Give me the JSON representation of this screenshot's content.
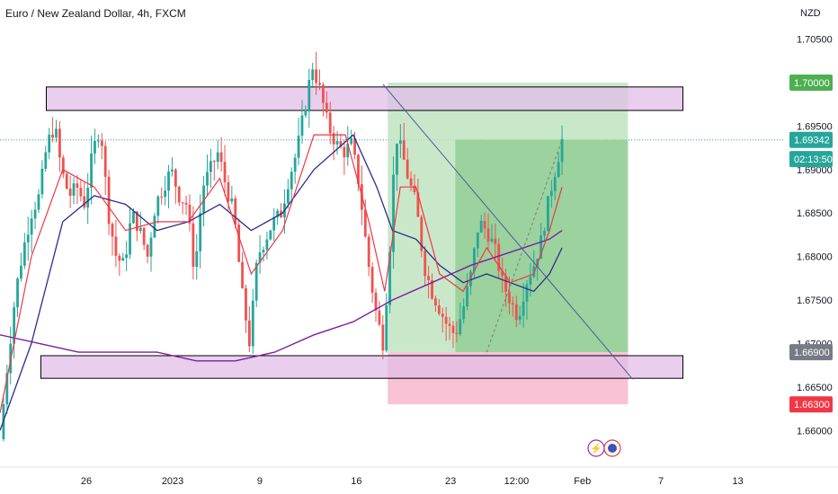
{
  "header": {
    "title": "Euro / New Zealand Dollar, 4h, FXCM",
    "currency": "NZD"
  },
  "colors": {
    "up": "#26a69a",
    "down": "#ef5350",
    "ma_fast": "#f23645",
    "ma_mid": "#2a2e8c",
    "ma_slow": "#7b1fa2",
    "zone": "#e1bee7",
    "profit": "#81c784",
    "loss": "#f48fb1"
  },
  "chart_data": {
    "type": "candlestick",
    "symbol": "EURNZD",
    "timeframe": "4h",
    "ylim": [
      1.656,
      1.7095
    ],
    "y_ticks": [
      "1.70500",
      "1.69500",
      "1.69000",
      "1.68500",
      "1.68000",
      "1.67500",
      "1.67000",
      "1.66500",
      "1.66000"
    ],
    "x_ticks": [
      "26",
      "2023",
      "9",
      "16",
      "23",
      "12:00",
      "Feb",
      "7",
      "13"
    ],
    "price_tags": [
      {
        "label": "1.70000",
        "value": 1.7,
        "color": "#4caf50"
      },
      {
        "label": "1.69342",
        "value": 1.69342,
        "color": "#26a69a"
      },
      {
        "label": "02:13:50",
        "value": 1.6912,
        "color": "#26a69a"
      },
      {
        "label": "1.66900",
        "value": 1.669,
        "color": "#787b86"
      },
      {
        "label": "1.66300",
        "value": 1.663,
        "color": "#f23645"
      }
    ],
    "current_price": 1.69342,
    "countdown": "02:13:50",
    "zones": [
      {
        "name": "resistance",
        "from": 1.6968,
        "to": 1.6995
      },
      {
        "name": "support",
        "from": 1.666,
        "to": 1.6686
      }
    ],
    "position": {
      "entry": 1.669,
      "target": 1.7,
      "stop": 1.663
    },
    "trendline": {
      "from": [
        0.488,
        1.6998
      ],
      "to": [
        0.806,
        1.6659
      ]
    },
    "close_path": [
      [
        0.0,
        1.659
      ],
      [
        0.01,
        1.668
      ],
      [
        0.02,
        1.676
      ],
      [
        0.03,
        1.681
      ],
      [
        0.04,
        1.685
      ],
      [
        0.05,
        1.687
      ],
      [
        0.06,
        1.693
      ],
      [
        0.07,
        1.695
      ],
      [
        0.078,
        1.69
      ],
      [
        0.088,
        1.687
      ],
      [
        0.098,
        1.688
      ],
      [
        0.108,
        1.686
      ],
      [
        0.118,
        1.692
      ],
      [
        0.128,
        1.695
      ],
      [
        0.138,
        1.685
      ],
      [
        0.148,
        1.68
      ],
      [
        0.158,
        1.679
      ],
      [
        0.168,
        1.685
      ],
      [
        0.178,
        1.683
      ],
      [
        0.188,
        1.68
      ],
      [
        0.198,
        1.686
      ],
      [
        0.208,
        1.688
      ],
      [
        0.218,
        1.69
      ],
      [
        0.228,
        1.687
      ],
      [
        0.238,
        1.686
      ],
      [
        0.248,
        1.678
      ],
      [
        0.258,
        1.688
      ],
      [
        0.268,
        1.69
      ],
      [
        0.278,
        1.692
      ],
      [
        0.288,
        1.688
      ],
      [
        0.298,
        1.685
      ],
      [
        0.308,
        1.676
      ],
      [
        0.318,
        1.67
      ],
      [
        0.328,
        1.68
      ],
      [
        0.338,
        1.682
      ],
      [
        0.348,
        1.684
      ],
      [
        0.358,
        1.685
      ],
      [
        0.368,
        1.689
      ],
      [
        0.378,
        1.692
      ],
      [
        0.388,
        1.697
      ],
      [
        0.398,
        1.702
      ],
      [
        0.408,
        1.699
      ],
      [
        0.418,
        1.695
      ],
      [
        0.428,
        1.693
      ],
      [
        0.438,
        1.692
      ],
      [
        0.448,
        1.693
      ],
      [
        0.458,
        1.688
      ],
      [
        0.468,
        1.68
      ],
      [
        0.478,
        1.674
      ],
      [
        0.488,
        1.67
      ],
      [
        0.496,
        1.68
      ],
      [
        0.504,
        1.694
      ],
      [
        0.512,
        1.692
      ],
      [
        0.52,
        1.689
      ],
      [
        0.53,
        1.686
      ],
      [
        0.54,
        1.679
      ],
      [
        0.55,
        1.676
      ],
      [
        0.56,
        1.674
      ],
      [
        0.57,
        1.672
      ],
      [
        0.58,
        1.671
      ],
      [
        0.59,
        1.674
      ],
      [
        0.6,
        1.678
      ],
      [
        0.61,
        1.684
      ],
      [
        0.62,
        1.683
      ],
      [
        0.63,
        1.681
      ],
      [
        0.64,
        1.677
      ],
      [
        0.65,
        1.675
      ],
      [
        0.66,
        1.673
      ],
      [
        0.67,
        1.677
      ],
      [
        0.68,
        1.679
      ],
      [
        0.69,
        1.682
      ],
      [
        0.7,
        1.687
      ],
      [
        0.71,
        1.691
      ],
      [
        0.716,
        1.6934
      ]
    ],
    "ma_fast_path": [
      [
        0.0,
        1.662
      ],
      [
        0.04,
        1.68
      ],
      [
        0.08,
        1.69
      ],
      [
        0.12,
        1.688
      ],
      [
        0.16,
        1.683
      ],
      [
        0.2,
        1.684
      ],
      [
        0.24,
        1.684
      ],
      [
        0.28,
        1.689
      ],
      [
        0.32,
        1.678
      ],
      [
        0.36,
        1.683
      ],
      [
        0.4,
        1.694
      ],
      [
        0.44,
        1.694
      ],
      [
        0.47,
        1.684
      ],
      [
        0.49,
        1.676
      ],
      [
        0.51,
        1.688
      ],
      [
        0.53,
        1.688
      ],
      [
        0.56,
        1.678
      ],
      [
        0.59,
        1.676
      ],
      [
        0.62,
        1.681
      ],
      [
        0.65,
        1.677
      ],
      [
        0.68,
        1.678
      ],
      [
        0.7,
        1.683
      ],
      [
        0.716,
        1.688
      ]
    ],
    "ma_mid_path": [
      [
        0.0,
        1.66
      ],
      [
        0.04,
        1.67
      ],
      [
        0.08,
        1.684
      ],
      [
        0.12,
        1.687
      ],
      [
        0.16,
        1.686
      ],
      [
        0.2,
        1.683
      ],
      [
        0.24,
        1.684
      ],
      [
        0.28,
        1.686
      ],
      [
        0.32,
        1.683
      ],
      [
        0.36,
        1.685
      ],
      [
        0.4,
        1.69
      ],
      [
        0.45,
        1.694
      ],
      [
        0.48,
        1.688
      ],
      [
        0.5,
        1.683
      ],
      [
        0.53,
        1.682
      ],
      [
        0.56,
        1.679
      ],
      [
        0.59,
        1.677
      ],
      [
        0.62,
        1.678
      ],
      [
        0.65,
        1.677
      ],
      [
        0.68,
        1.676
      ],
      [
        0.7,
        1.678
      ],
      [
        0.716,
        1.681
      ]
    ],
    "ma_slow_path": [
      [
        0.0,
        1.671
      ],
      [
        0.05,
        1.67
      ],
      [
        0.1,
        1.669
      ],
      [
        0.15,
        1.669
      ],
      [
        0.2,
        1.669
      ],
      [
        0.25,
        1.668
      ],
      [
        0.3,
        1.668
      ],
      [
        0.35,
        1.669
      ],
      [
        0.4,
        1.671
      ],
      [
        0.45,
        1.6725
      ],
      [
        0.5,
        1.675
      ],
      [
        0.55,
        1.677
      ],
      [
        0.6,
        1.679
      ],
      [
        0.65,
        1.6805
      ],
      [
        0.7,
        1.682
      ],
      [
        0.716,
        1.683
      ]
    ]
  },
  "toolbar": {
    "replay_icon": "lightning-icon",
    "globe_icon": "globe-icon"
  }
}
